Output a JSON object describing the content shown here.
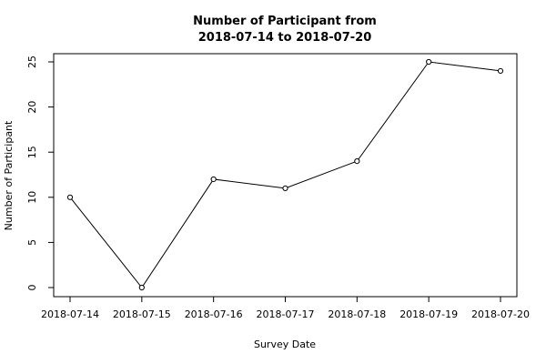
{
  "chart_data": {
    "type": "line",
    "title": [
      "Number of Participant from",
      "2018-07-14 to 2018-07-20"
    ],
    "xlabel": "Survey Date",
    "ylabel": "Number of Participant",
    "categories": [
      "2018-07-14",
      "2018-07-15",
      "2018-07-16",
      "2018-07-17",
      "2018-07-18",
      "2018-07-19",
      "2018-07-20"
    ],
    "series": [
      {
        "values": [
          10,
          0,
          12,
          11,
          14,
          25,
          24
        ]
      }
    ],
    "ylim": [
      0,
      25
    ],
    "yticks": [
      0,
      5,
      10,
      15,
      20,
      25
    ],
    "grid": false,
    "legend": "none",
    "markers": "open-circle",
    "colors": {
      "line": "#000000",
      "axis": "#000000",
      "background": "#ffffff"
    }
  }
}
